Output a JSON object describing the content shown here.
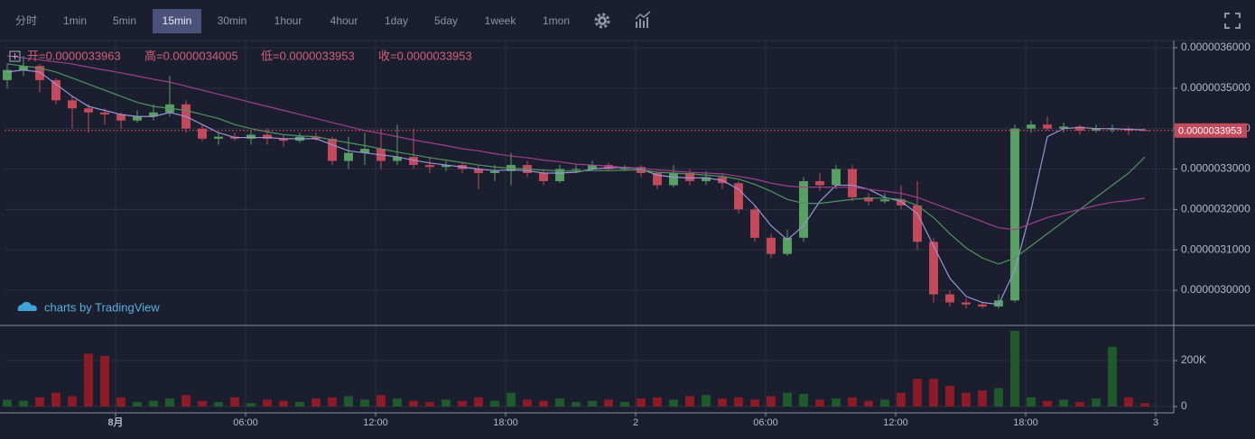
{
  "toolbar": {
    "intervals": [
      "分时",
      "1min",
      "5min",
      "15min",
      "30min",
      "1hour",
      "4hour",
      "1day",
      "5day",
      "1week",
      "1mon"
    ],
    "active": 3
  },
  "branding": "charts by TradingView",
  "chart_data": {
    "type": "candlestick",
    "ohlc_labels": [
      "开=0.0000033963",
      "高=0.0000034005",
      "低=0.0000033953",
      "收=0.0000033953"
    ],
    "last_price": {
      "value": 3.3953e-06,
      "label": "0.0000033953"
    },
    "up_color": "#58a063",
    "down_color": "#c24a5a",
    "volume_up_color": "#1f5a2c",
    "volume_down_color": "#8c1b28",
    "xlim": [
      -5.125,
      48.833
    ],
    "xticks": [
      {
        "value": 0,
        "label": "8月"
      },
      {
        "value": 6,
        "label": "06:00"
      },
      {
        "value": 12,
        "label": "12:00"
      },
      {
        "value": 18,
        "label": "18:00"
      },
      {
        "value": 24,
        "label": "2"
      },
      {
        "value": 30,
        "label": "06:00"
      },
      {
        "value": 36,
        "label": "12:00"
      },
      {
        "value": 42,
        "label": "18:00"
      },
      {
        "value": 48,
        "label": "3"
      }
    ],
    "ylim": [
      2.9154e-06,
      3.6178e-06
    ],
    "yticks": [
      {
        "value": 3e-06,
        "label": "0.0000030000"
      },
      {
        "value": 3.1e-06,
        "label": "0.0000031000"
      },
      {
        "value": 3.2e-06,
        "label": "0.0000032000"
      },
      {
        "value": 3.3e-06,
        "label": "0.0000033000"
      },
      {
        "value": 3.4e-06,
        "label": "0.0000034000"
      },
      {
        "value": 3.5e-06,
        "label": "0.0000035000"
      },
      {
        "value": 3.6e-06,
        "label": "0.0000036000"
      }
    ],
    "y2lim": [
      -27500,
      349000
    ],
    "y2ticks": [
      0,
      {
        "value": 200000,
        "label": "200K"
      }
    ],
    "grid": true,
    "x": [
      -5,
      -4.25,
      -3.5,
      -2.75,
      -2,
      -1.25,
      -0.5,
      0.25,
      1,
      1.75,
      2.5,
      3.25,
      4,
      4.75,
      5.5,
      6.25,
      7,
      7.75,
      8.5,
      9.25,
      10,
      10.75,
      11.5,
      12.25,
      13,
      13.75,
      14.5,
      15.25,
      16,
      16.75,
      17.5,
      18.25,
      19,
      19.75,
      20.5,
      21.25,
      22,
      22.75,
      23.5,
      24.25,
      25,
      25.75,
      26.5,
      27.25,
      28,
      28.75,
      29.5,
      30.25,
      31,
      31.75,
      32.5,
      33.25,
      34,
      34.75,
      35.5,
      36.25,
      37,
      37.75,
      38.5,
      39.25,
      40,
      40.75,
      41.5,
      42.25,
      43,
      43.75,
      44.5,
      45.25,
      46,
      46.75,
      47.5
    ],
    "open": [
      3.52e-06,
      3.545e-06,
      3.555e-06,
      3.52e-06,
      3.47e-06,
      3.45e-06,
      3.44e-06,
      3.435e-06,
      3.42e-06,
      3.43e-06,
      3.44e-06,
      3.46e-06,
      3.4e-06,
      3.375e-06,
      3.38e-06,
      3.375e-06,
      3.385e-06,
      3.375e-06,
      3.37e-06,
      3.38e-06,
      3.375e-06,
      3.32e-06,
      3.34e-06,
      3.35e-06,
      3.32e-06,
      3.33e-06,
      3.31e-06,
      3.305e-06,
      3.31e-06,
      3.3e-06,
      3.29e-06,
      3.295e-06,
      3.31e-06,
      3.29e-06,
      3.27e-06,
      3.3e-06,
      3.3e-06,
      3.31e-06,
      3.3e-06,
      3.305e-06,
      3.29e-06,
      3.26e-06,
      3.29e-06,
      3.27e-06,
      3.28e-06,
      3.265e-06,
      3.2e-06,
      3.13e-06,
      3.09e-06,
      3.13e-06,
      3.27e-06,
      3.26e-06,
      3.3e-06,
      3.23e-06,
      3.22e-06,
      3.225e-06,
      3.21e-06,
      3.12e-06,
      2.99e-06,
      2.97e-06,
      2.965e-06,
      2.96e-06,
      2.975e-06,
      3.4e-06,
      3.41e-06,
      3.4e-06,
      3.405e-06,
      3.395e-06,
      3.4e-06,
      3.4e-06,
      3.3963e-06
    ],
    "high": [
      3.56e-06,
      3.58e-06,
      3.56e-06,
      3.525e-06,
      3.48e-06,
      3.46e-06,
      3.45e-06,
      3.44e-06,
      3.445e-06,
      3.46e-06,
      3.53e-06,
      3.47e-06,
      3.41e-06,
      3.39e-06,
      3.39e-06,
      3.395e-06,
      3.4e-06,
      3.385e-06,
      3.39e-06,
      3.39e-06,
      3.38e-06,
      3.38e-06,
      3.39e-06,
      3.4e-06,
      3.41e-06,
      3.4e-06,
      3.33e-06,
      3.32e-06,
      3.315e-06,
      3.31e-06,
      3.31e-06,
      3.34e-06,
      3.32e-06,
      3.3e-06,
      3.31e-06,
      3.31e-06,
      3.32e-06,
      3.315e-06,
      3.31e-06,
      3.31e-06,
      3.295e-06,
      3.31e-06,
      3.3e-06,
      3.295e-06,
      3.29e-06,
      3.27e-06,
      3.21e-06,
      3.14e-06,
      3.15e-06,
      3.28e-06,
      3.29e-06,
      3.31e-06,
      3.31e-06,
      3.24e-06,
      3.24e-06,
      3.26e-06,
      3.27e-06,
      3.13e-06,
      3e-06,
      2.98e-06,
      2.97e-06,
      2.99e-06,
      3.41e-06,
      3.42e-06,
      3.43e-06,
      3.415e-06,
      3.41e-06,
      3.41e-06,
      3.41e-06,
      3.405e-06,
      3.4005e-06
    ],
    "low": [
      3.5e-06,
      3.53e-06,
      3.49e-06,
      3.46e-06,
      3.4e-06,
      3.39e-06,
      3.41e-06,
      3.4e-06,
      3.415e-06,
      3.42e-06,
      3.43e-06,
      3.39e-06,
      3.37e-06,
      3.36e-06,
      3.37e-06,
      3.36e-06,
      3.36e-06,
      3.355e-06,
      3.365e-06,
      3.37e-06,
      3.31e-06,
      3.3e-06,
      3.31e-06,
      3.3e-06,
      3.31e-06,
      3.3e-06,
      3.29e-06,
      3.295e-06,
      3.29e-06,
      3.25e-06,
      3.27e-06,
      3.26e-06,
      3.28e-06,
      3.26e-06,
      3.265e-06,
      3.29e-06,
      3.295e-06,
      3.295e-06,
      3.295e-06,
      3.28e-06,
      3.25e-06,
      3.255e-06,
      3.26e-06,
      3.26e-06,
      3.25e-06,
      3.19e-06,
      3.12e-06,
      3.08e-06,
      3.085e-06,
      3.12e-06,
      3.245e-06,
      3.25e-06,
      3.22e-06,
      3.21e-06,
      3.215e-06,
      3.2e-06,
      3.1e-06,
      2.97e-06,
      2.96e-06,
      2.955e-06,
      2.955e-06,
      2.955e-06,
      2.97e-06,
      3.39e-06,
      3.395e-06,
      3.39e-06,
      3.385e-06,
      3.39e-06,
      3.39e-06,
      3.385e-06,
      3.3953e-06
    ],
    "close": [
      3.545e-06,
      3.555e-06,
      3.52e-06,
      3.47e-06,
      3.45e-06,
      3.44e-06,
      3.435e-06,
      3.42e-06,
      3.43e-06,
      3.44e-06,
      3.46e-06,
      3.4e-06,
      3.375e-06,
      3.38e-06,
      3.375e-06,
      3.385e-06,
      3.375e-06,
      3.37e-06,
      3.38e-06,
      3.375e-06,
      3.32e-06,
      3.34e-06,
      3.35e-06,
      3.32e-06,
      3.33e-06,
      3.31e-06,
      3.305e-06,
      3.31e-06,
      3.3e-06,
      3.29e-06,
      3.295e-06,
      3.31e-06,
      3.29e-06,
      3.27e-06,
      3.3e-06,
      3.3e-06,
      3.31e-06,
      3.3e-06,
      3.305e-06,
      3.29e-06,
      3.26e-06,
      3.29e-06,
      3.27e-06,
      3.28e-06,
      3.265e-06,
      3.2e-06,
      3.13e-06,
      3.09e-06,
      3.13e-06,
      3.27e-06,
      3.26e-06,
      3.3e-06,
      3.23e-06,
      3.22e-06,
      3.225e-06,
      3.21e-06,
      3.12e-06,
      2.99e-06,
      2.97e-06,
      2.965e-06,
      2.96e-06,
      2.975e-06,
      3.4e-06,
      3.41e-06,
      3.4e-06,
      3.405e-06,
      3.395e-06,
      3.4e-06,
      3.4e-06,
      3.395e-06,
      3.3953e-06
    ],
    "volume": [
      30000,
      25000,
      40000,
      60000,
      45000,
      230000,
      220000,
      40000,
      20000,
      25000,
      35000,
      50000,
      25000,
      20000,
      40000,
      15000,
      30000,
      25000,
      20000,
      35000,
      40000,
      45000,
      30000,
      50000,
      35000,
      25000,
      20000,
      30000,
      25000,
      40000,
      25000,
      60000,
      30000,
      25000,
      35000,
      20000,
      25000,
      30000,
      20000,
      35000,
      40000,
      30000,
      45000,
      50000,
      35000,
      40000,
      30000,
      45000,
      60000,
      55000,
      30000,
      35000,
      40000,
      25000,
      30000,
      60000,
      120000,
      120000,
      90000,
      60000,
      70000,
      80000,
      330000,
      40000,
      25000,
      30000,
      20000,
      35000,
      260000,
      40000,
      15000
    ],
    "ma_lines": [
      {
        "color": "#9b93d6",
        "values": [
          3.54e-06,
          3.545e-06,
          3.54e-06,
          3.51e-06,
          3.48e-06,
          3.455e-06,
          3.445e-06,
          3.435e-06,
          3.43e-06,
          3.43e-06,
          3.44e-06,
          3.43e-06,
          3.41e-06,
          3.39e-06,
          3.378e-06,
          3.378e-06,
          3.378e-06,
          3.375e-06,
          3.375e-06,
          3.375e-06,
          3.36e-06,
          3.345e-06,
          3.34e-06,
          3.335e-06,
          3.33e-06,
          3.322e-06,
          3.315e-06,
          3.31e-06,
          3.305e-06,
          3.3e-06,
          3.296e-06,
          3.298e-06,
          3.296e-06,
          3.29e-06,
          3.29e-06,
          3.292e-06,
          3.3e-06,
          3.303e-06,
          3.304e-06,
          3.3e-06,
          3.285e-06,
          3.28e-06,
          3.278e-06,
          3.278e-06,
          3.272e-06,
          3.25e-06,
          3.21e-06,
          3.16e-06,
          3.125e-06,
          3.16e-06,
          3.22e-06,
          3.26e-06,
          3.26e-06,
          3.25e-06,
          3.23e-06,
          3.22e-06,
          3.19e-06,
          3.11e-06,
          3.03e-06,
          2.985e-06,
          2.97e-06,
          2.965e-06,
          3.05e-06,
          3.2e-06,
          3.38e-06,
          3.4e-06,
          3.403e-06,
          3.4e-06,
          3.4e-06,
          3.398e-06,
          3.397e-06
        ]
      },
      {
        "color": "#4f9460",
        "values": [
          3.56e-06,
          3.555e-06,
          3.55e-06,
          3.54e-06,
          3.525e-06,
          3.51e-06,
          3.495e-06,
          3.48e-06,
          3.465e-06,
          3.455e-06,
          3.45e-06,
          3.445e-06,
          3.435e-06,
          3.425e-06,
          3.41e-06,
          3.4e-06,
          3.392e-06,
          3.385e-06,
          3.382e-06,
          3.38e-06,
          3.372e-06,
          3.365e-06,
          3.358e-06,
          3.35e-06,
          3.342e-06,
          3.335e-06,
          3.328e-06,
          3.322e-06,
          3.316e-06,
          3.31e-06,
          3.305e-06,
          3.302e-06,
          3.3e-06,
          3.297e-06,
          3.295e-06,
          3.295e-06,
          3.296e-06,
          3.296e-06,
          3.297e-06,
          3.298e-06,
          3.292e-06,
          3.29e-06,
          3.288e-06,
          3.285e-06,
          3.282e-06,
          3.275e-06,
          3.262e-06,
          3.245e-06,
          3.225e-06,
          3.215e-06,
          3.215e-06,
          3.22e-06,
          3.225e-06,
          3.228e-06,
          3.228e-06,
          3.225e-06,
          3.21e-06,
          3.18e-06,
          3.14e-06,
          3.105e-06,
          3.08e-06,
          3.065e-06,
          3.08e-06,
          3.11e-06,
          3.14e-06,
          3.17e-06,
          3.2e-06,
          3.23e-06,
          3.26e-06,
          3.29e-06,
          3.33e-06
        ]
      },
      {
        "color": "#a03f8f",
        "values": [
          3.58e-06,
          3.575e-06,
          3.57e-06,
          3.565e-06,
          3.56e-06,
          3.552e-06,
          3.545e-06,
          3.538e-06,
          3.53e-06,
          3.522e-06,
          3.515e-06,
          3.505e-06,
          3.495e-06,
          3.485e-06,
          3.475e-06,
          3.465e-06,
          3.455e-06,
          3.445e-06,
          3.435e-06,
          3.425e-06,
          3.415e-06,
          3.405e-06,
          3.395e-06,
          3.388e-06,
          3.38e-06,
          3.372e-06,
          3.365e-06,
          3.358e-06,
          3.35e-06,
          3.345e-06,
          3.338e-06,
          3.332e-06,
          3.328e-06,
          3.322e-06,
          3.318e-06,
          3.312e-06,
          3.31e-06,
          3.307e-06,
          3.304e-06,
          3.302e-06,
          3.298e-06,
          3.295e-06,
          3.292e-06,
          3.29e-06,
          3.288e-06,
          3.282e-06,
          3.275e-06,
          3.265e-06,
          3.258e-06,
          3.255e-06,
          3.255e-06,
          3.255e-06,
          3.255e-06,
          3.25e-06,
          3.245e-06,
          3.24e-06,
          3.23e-06,
          3.215e-06,
          3.2e-06,
          3.185e-06,
          3.17e-06,
          3.155e-06,
          3.15e-06,
          3.165e-06,
          3.18e-06,
          3.19e-06,
          3.2e-06,
          3.21e-06,
          3.218e-06,
          3.222e-06,
          3.228e-06
        ]
      }
    ]
  }
}
